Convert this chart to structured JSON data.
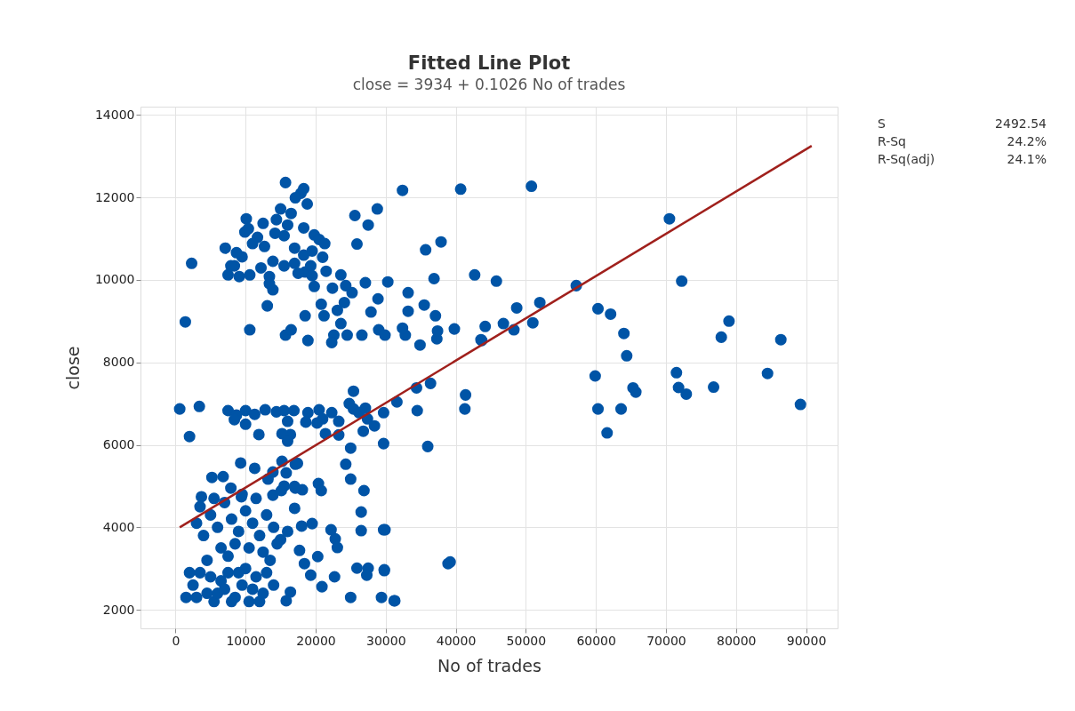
{
  "chart_data": {
    "type": "scatter",
    "title": "Fitted Line Plot",
    "subtitle": "close = 3934 + 0.1026 No of trades",
    "xlabel": "No of trades",
    "ylabel": "close",
    "xlim": [
      -5000,
      94500
    ],
    "ylim": [
      1550,
      14200
    ],
    "xticks": [
      0,
      10000,
      20000,
      30000,
      40000,
      50000,
      60000,
      70000,
      80000,
      90000
    ],
    "yticks": [
      2000,
      4000,
      6000,
      8000,
      10000,
      12000,
      14000
    ],
    "grid": true,
    "annotations": [
      "S",
      "2492.54",
      "R-Sq",
      "24.2%",
      "R-Sq(adj)",
      "24.1%"
    ],
    "series": [
      {
        "marker": "circle",
        "color": "#0054a6",
        "x": [
          70500,
          72250,
          50800,
          40700,
          32400,
          57200,
          52000,
          48700,
          51000,
          48300,
          46800,
          43700,
          44200,
          45800,
          42700,
          60300,
          62100,
          64000,
          64400,
          65300,
          65700,
          59900,
          71500,
          71800,
          72900,
          76800,
          77900,
          79000,
          84500,
          86400,
          89200,
          60300,
          63600,
          61600,
          41400,
          41300,
          38900,
          36400,
          36000,
          34400,
          34500,
          31600,
          29700,
          29700,
          29900,
          29800,
          31200,
          29400,
          37300,
          37100,
          37900,
          35700,
          33200,
          33200,
          34900,
          36900,
          28800,
          25600,
          27500,
          25900,
          27100,
          30300,
          28900,
          27900,
          29000,
          29900,
          32800,
          32400,
          26600,
          24500,
          22600,
          23600,
          21200,
          20800,
          23100,
          22300,
          18500,
          18900,
          24100,
          24300,
          25200,
          22400,
          23600,
          19800,
          21500,
          18500,
          15700,
          16500,
          13100,
          17500,
          2300,
          1400,
          10600,
          35500,
          39800,
          37400,
          43600,
          15700,
          17900,
          17100,
          18300,
          18800,
          16500,
          15000,
          14400,
          16000,
          15500,
          18300,
          19800,
          20500,
          19500,
          18300,
          17000,
          15500,
          13900,
          12700,
          11700,
          10100,
          9900,
          11000,
          9500,
          8400,
          7100,
          7900,
          7500,
          9100,
          10600,
          12200,
          13400,
          13900,
          13400,
          8700,
          10400,
          12500,
          14200,
          17000,
          19300,
          21300,
          21000,
          19500,
          600,
          3400,
          2000,
          7500,
          8700,
          10000,
          11300,
          12800,
          14400,
          15500,
          16000,
          16900,
          18900,
          20500,
          21000,
          22300,
          23300,
          24800,
          25400,
          25400,
          26200,
          27100,
          27400,
          26800,
          28400,
          23300,
          21400,
          16400,
          15200,
          16000,
          11900,
          10000,
          8400,
          18600,
          20200,
          9300,
          9400,
          11300,
          13900,
          15200,
          17100,
          17000,
          5200,
          6800,
          7900,
          3700,
          13200,
          13900,
          15500,
          18100,
          20400,
          20800,
          26900,
          26500,
          26500,
          29700,
          25000,
          24300,
          25000,
          39200,
          31300,
          25000,
          20900,
          22700,
          19300,
          20300,
          18400,
          17700,
          25900,
          27500,
          29800,
          27300,
          16400,
          15800,
          22200,
          22800,
          23100,
          19500,
          18000,
          17000,
          17100,
          17400,
          15800,
          15100,
          3500,
          5000,
          6000,
          7000,
          8000,
          9000,
          10000,
          11000,
          12000,
          13000,
          14000,
          15000,
          4000,
          6500,
          8500,
          10500,
          12500,
          14500,
          3000,
          16000,
          5500,
          11500,
          9500,
          7500,
          13500,
          4500,
          1500,
          2500,
          3500,
          4500,
          5500,
          6500,
          7500,
          8500,
          9500,
          10500,
          11500,
          12500,
          13000,
          2000,
          6000,
          8000,
          10000,
          12000,
          14000,
          3000,
          5000,
          9000,
          7000,
          11000
        ],
        "values": [
          11480,
          9970,
          12270,
          12200,
          12170,
          9860,
          9450,
          9320,
          8960,
          8790,
          8940,
          8530,
          8870,
          9970,
          10120,
          9300,
          9170,
          8700,
          8160,
          7380,
          7280,
          7670,
          7750,
          7390,
          7230,
          7400,
          8610,
          9000,
          7730,
          8550,
          6980,
          6870,
          6870,
          6290,
          7210,
          6870,
          3120,
          7490,
          5960,
          7380,
          6830,
          7040,
          6780,
          6030,
          3940,
          2950,
          2220,
          2300,
          8570,
          9130,
          10920,
          10730,
          9690,
          9240,
          8420,
          10030,
          11720,
          11560,
          11330,
          10870,
          9930,
          9950,
          9540,
          9220,
          8790,
          8660,
          8660,
          8830,
          8660,
          8660,
          8660,
          8940,
          9130,
          9410,
          9260,
          8480,
          9130,
          8530,
          9450,
          9860,
          9690,
          9800,
          10120,
          9840,
          10210,
          10190,
          8660,
          8790,
          9370,
          10160,
          10400,
          8980,
          8790,
          9390,
          8810,
          8760,
          8550,
          12360,
          12100,
          11990,
          12210,
          11840,
          11610,
          11720,
          11460,
          11330,
          11070,
          11260,
          11090,
          10980,
          10700,
          10600,
          10400,
          10340,
          10450,
          10810,
          11030,
          11480,
          11160,
          10880,
          10560,
          10340,
          10770,
          10340,
          10120,
          10080,
          10120,
          10290,
          10080,
          9760,
          9910,
          10660,
          11240,
          11370,
          11130,
          10770,
          10340,
          10880,
          10550,
          10100,
          6870,
          6930,
          6200,
          6830,
          6720,
          6830,
          6740,
          6850,
          6800,
          6830,
          6570,
          6830,
          6780,
          6850,
          6630,
          6780,
          6570,
          7000,
          7300,
          6870,
          6780,
          6890,
          6630,
          6330,
          6460,
          6240,
          6270,
          6250,
          6270,
          6090,
          6250,
          6500,
          6610,
          6550,
          6530,
          5560,
          4740,
          5430,
          5340,
          5600,
          5530,
          4990,
          5210,
          5230,
          4950,
          4740,
          5170,
          4780,
          5000,
          4910,
          5060,
          4890,
          4890,
          4370,
          3920,
          3940,
          5920,
          5530,
          5170,
          3160,
          2220,
          2300,
          2560,
          2800,
          2840,
          3290,
          3120,
          3440,
          3010,
          3010,
          2970,
          2840,
          2430,
          2220,
          3940,
          3720,
          3510,
          4090,
          4030,
          4460,
          4950,
          5550,
          5320,
          4890,
          4500,
          4300,
          4000,
          4600,
          4200,
          3900,
          4400,
          4100,
          3800,
          4300,
          4000,
          3700,
          3800,
          3500,
          3600,
          3500,
          3400,
          3600,
          4100,
          3900,
          4700,
          4700,
          4800,
          3300,
          3200,
          3200,
          2300,
          2600,
          2900,
          2400,
          2200,
          2700,
          2900,
          2300,
          2600,
          2200,
          2800,
          2400,
          2900,
          2900,
          2400,
          2200,
          3000,
          2200,
          2600,
          2300,
          2800,
          2900,
          2500,
          2500
        ]
      },
      {
        "type": "line",
        "color": "#a0201c",
        "x": [
          600,
          90800
        ],
        "values": [
          4000,
          13250
        ]
      }
    ]
  }
}
